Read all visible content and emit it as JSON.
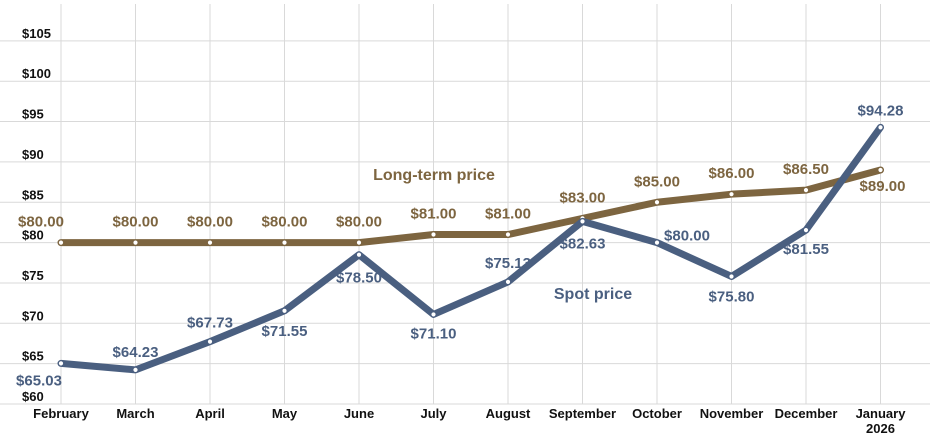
{
  "chart_data": {
    "type": "line",
    "categories": [
      "February",
      "March",
      "April",
      "May",
      "June",
      "July",
      "August",
      "September",
      "October",
      "November",
      "December",
      "January 2026"
    ],
    "y_ticks": [
      "$60",
      "$65",
      "$70",
      "$75",
      "$80",
      "$85",
      "$90",
      "$95",
      "$100",
      "$105"
    ],
    "ylim": [
      60,
      105
    ],
    "grid": true,
    "series": [
      {
        "name": "Long-term price",
        "color": "#7d6540",
        "values": [
          80.0,
          80.0,
          80.0,
          80.0,
          80.0,
          81.0,
          81.0,
          83.0,
          85.0,
          86.0,
          86.5,
          89.0
        ],
        "labels": [
          "$80.00",
          "$80.00",
          "$80.00",
          "$80.00",
          "$80.00",
          "$81.00",
          "$81.00",
          "$83.00",
          "$85.00",
          "$86.00",
          "$86.50",
          "$89.00"
        ]
      },
      {
        "name": "Spot price",
        "color": "#4a5f80",
        "values": [
          65.03,
          64.23,
          67.73,
          71.55,
          78.5,
          71.1,
          75.13,
          82.63,
          80.0,
          75.8,
          81.55,
          94.28
        ],
        "labels": [
          "$65.03",
          "$64.23",
          "$67.73",
          "$71.55",
          "$78.50",
          "$71.10",
          "$75.13",
          "$82.63",
          "$80.00",
          "$75.80",
          "$81.55",
          "$94.28"
        ]
      }
    ]
  }
}
